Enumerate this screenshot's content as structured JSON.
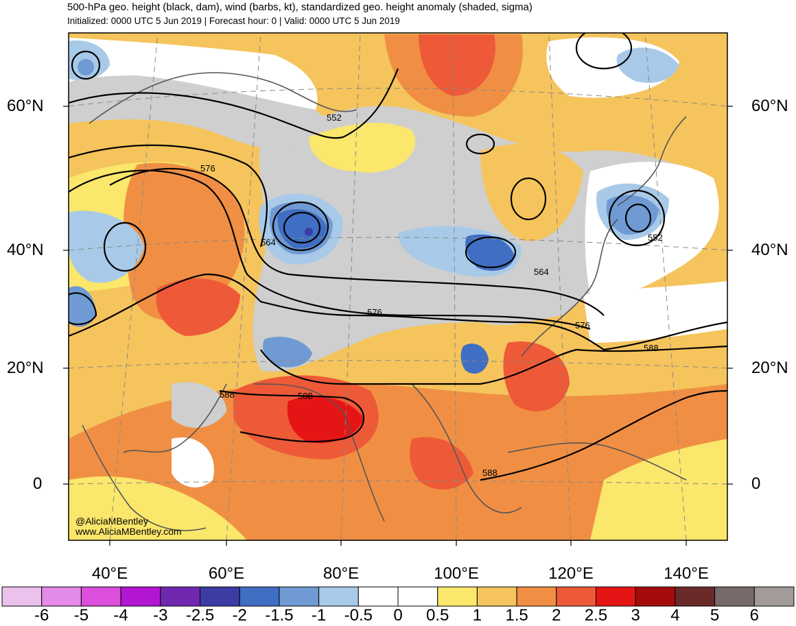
{
  "header": {
    "title": "500-hPa geo. height (black, dam), wind (barbs, kt), standardized geo. height anomaly (shaded, sigma)",
    "subtitle": "Initialized: 0000 UTC 5 Jun 2019 | Forecast hour: 0 | Valid: 0000 UTC 5 Jun 2019"
  },
  "map": {
    "lat_labels": [
      "60°N",
      "40°N",
      "20°N",
      "0"
    ],
    "lon_labels": [
      "40°E",
      "60°E",
      "80°E",
      "100°E",
      "120°E",
      "140°E"
    ],
    "contour_labels": [
      "552",
      "576",
      "564",
      "564",
      "576",
      "576",
      "588",
      "588",
      "588",
      "552",
      "588"
    ],
    "credit_handle": "@AliciaMBentley",
    "credit_site": "www.AliciaMBentley.com"
  },
  "colorbar": {
    "labels": [
      "-6",
      "-5",
      "-4",
      "-3",
      "-2.5",
      "-2",
      "-1.5",
      "-1",
      "-0.5",
      "0",
      "0.5",
      "1",
      "1.5",
      "2",
      "2.5",
      "3",
      "4",
      "5",
      "6"
    ],
    "colors": [
      "#ecc1ec",
      "#e48ae7",
      "#dc4fdc",
      "#b316d3",
      "#7028b0",
      "#3c3ca4",
      "#3f6ec3",
      "#6f9ad3",
      "#a8cae8",
      "#ffffff",
      "#ffffff",
      "#fae76b",
      "#f5c45c",
      "#f08f44",
      "#ee5a37",
      "#e51515",
      "#a50b0b",
      "#6b2a2a",
      "#766a6a",
      "#a39a9a"
    ]
  },
  "colors": {
    "neg_light": "#a8cae8",
    "neg_mid": "#6f9ad3",
    "neg_strong": "#3f6ec3",
    "neg_core": "#3c3ca4",
    "near_zero_land": "#cfcfcf",
    "pos_05": "#fae76b",
    "pos_1": "#f5c45c",
    "pos_15": "#f08f44",
    "pos_2": "#ee5a37",
    "pos_25": "#e51515"
  }
}
